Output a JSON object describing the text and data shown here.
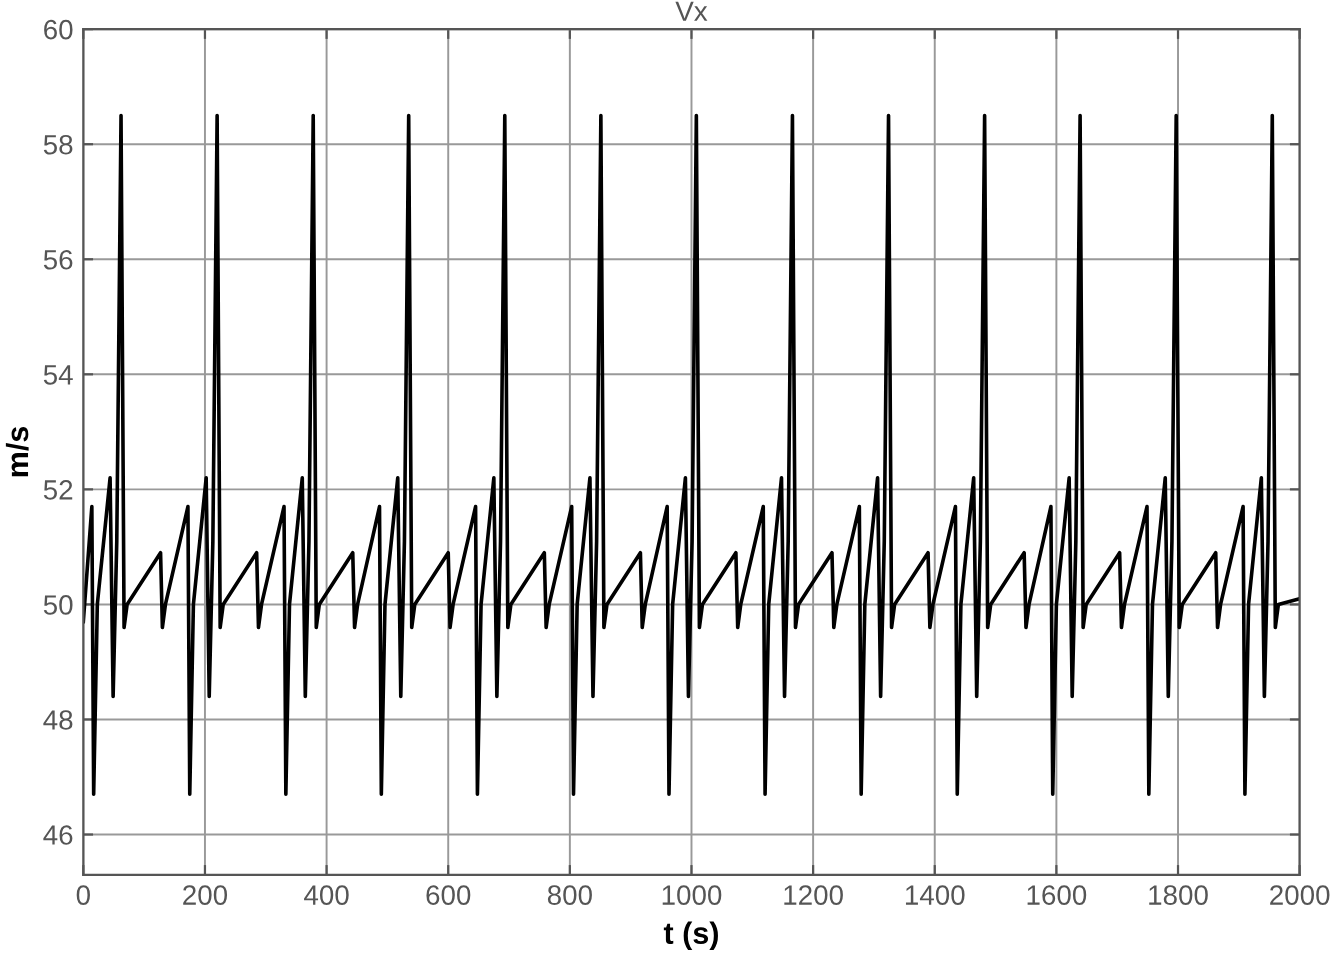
{
  "chart_data": {
    "type": "line",
    "title": "Vx",
    "xlabel": "t (s)",
    "ylabel": "m/s",
    "xlim": [
      0,
      2000
    ],
    "ylim": [
      45.3,
      60
    ],
    "xticks": [
      0,
      200,
      400,
      600,
      800,
      1000,
      1200,
      1400,
      1600,
      1800,
      2000
    ],
    "yticks": [
      46,
      48,
      50,
      52,
      54,
      56,
      58,
      60
    ],
    "grid": true,
    "legend": false,
    "series": [
      {
        "color": "#000000",
        "x": [
          0,
          14,
          17,
          23,
          44,
          49,
          55,
          62,
          67,
          72,
          127,
          130,
          135,
          172,
          175,
          181,
          202,
          207,
          213,
          220,
          225,
          230,
          285,
          288,
          293,
          330,
          333,
          339,
          360,
          365,
          371,
          378,
          383,
          388,
          443,
          446,
          451,
          487,
          490,
          496,
          517,
          522,
          528,
          535,
          540,
          545,
          600,
          603,
          608,
          645,
          648,
          654,
          675,
          680,
          686,
          693,
          698,
          703,
          758,
          761,
          766,
          803,
          806,
          812,
          833,
          838,
          844,
          851,
          856,
          861,
          916,
          919,
          924,
          960,
          963,
          969,
          990,
          995,
          1001,
          1008,
          1013,
          1018,
          1073,
          1076,
          1081,
          1118,
          1121,
          1127,
          1148,
          1153,
          1159,
          1166,
          1171,
          1176,
          1231,
          1234,
          1239,
          1276,
          1279,
          1285,
          1306,
          1311,
          1317,
          1324,
          1329,
          1334,
          1389,
          1392,
          1397,
          1434,
          1437,
          1443,
          1464,
          1469,
          1475,
          1482,
          1487,
          1492,
          1547,
          1550,
          1555,
          1591,
          1594,
          1600,
          1621,
          1626,
          1632,
          1639,
          1644,
          1649,
          1704,
          1707,
          1712,
          1749,
          1752,
          1758,
          1779,
          1784,
          1790,
          1797,
          1802,
          1807,
          1862,
          1865,
          1870,
          1907,
          1910,
          1916,
          1937,
          1942,
          1948,
          1955,
          1960,
          1965,
          2000
        ],
        "values": [
          49.7,
          51.7,
          46.7,
          50.0,
          52.2,
          48.4,
          51.1,
          58.5,
          49.6,
          50.0,
          50.9,
          49.6,
          50.0,
          51.7,
          46.7,
          50.0,
          52.2,
          48.4,
          51.1,
          58.5,
          49.6,
          50.0,
          50.9,
          49.6,
          50.0,
          51.7,
          46.7,
          50.0,
          52.2,
          48.4,
          51.1,
          58.5,
          49.6,
          50.0,
          50.9,
          49.6,
          50.0,
          51.7,
          46.7,
          50.0,
          52.2,
          48.4,
          51.1,
          58.5,
          49.6,
          50.0,
          50.9,
          49.6,
          50.0,
          51.7,
          46.7,
          50.0,
          52.2,
          48.4,
          51.1,
          58.5,
          49.6,
          50.0,
          50.9,
          49.6,
          50.0,
          51.7,
          46.7,
          50.0,
          52.2,
          48.4,
          51.1,
          58.5,
          49.6,
          50.0,
          50.9,
          49.6,
          50.0,
          51.7,
          46.7,
          50.0,
          52.2,
          48.4,
          51.1,
          58.5,
          49.6,
          50.0,
          50.9,
          49.6,
          50.0,
          51.7,
          46.7,
          50.0,
          52.2,
          48.4,
          51.1,
          58.5,
          49.6,
          50.0,
          50.9,
          49.6,
          50.0,
          51.7,
          46.7,
          50.0,
          52.2,
          48.4,
          51.1,
          58.5,
          49.6,
          50.0,
          50.9,
          49.6,
          50.0,
          51.7,
          46.7,
          50.0,
          52.2,
          48.4,
          51.1,
          58.5,
          49.6,
          50.0,
          50.9,
          49.6,
          50.0,
          51.7,
          46.7,
          50.0,
          52.2,
          48.4,
          51.1,
          58.5,
          49.6,
          50.0,
          50.9,
          49.6,
          50.0,
          51.7,
          46.7,
          50.0,
          52.2,
          48.4,
          51.1,
          58.5,
          49.6,
          50.0,
          50.9,
          49.6,
          50.0,
          51.7,
          46.7,
          50.0,
          52.2,
          48.4,
          51.1,
          58.5,
          49.6,
          50.0,
          50.1
        ]
      }
    ]
  }
}
